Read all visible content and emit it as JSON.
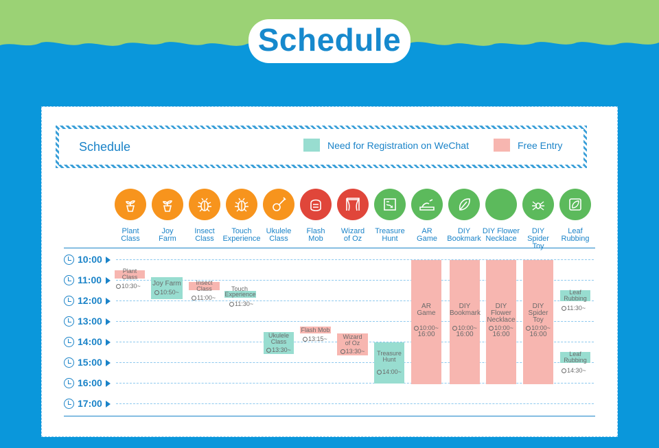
{
  "page": {
    "title": "Schedule"
  },
  "legend": {
    "title": "Schedule",
    "registration_label": "Need for Registration on WeChat",
    "free_label": "Free Entry",
    "registration_color": "#98ddd0",
    "free_color": "#f7b6b0"
  },
  "colors": {
    "orange": "#f7941d",
    "red": "#e0463a",
    "green": "#5cba5c",
    "blue": "#1a83c8",
    "sky": "#0a97db",
    "grass": "#9bd275"
  },
  "activities": [
    {
      "line1": "Plant",
      "line2": "Class",
      "line3": "",
      "icon": "potted-plant-icon",
      "color": "orange"
    },
    {
      "line1": "Joy",
      "line2": "Farm",
      "line3": "",
      "icon": "potted-plant-icon",
      "color": "orange"
    },
    {
      "line1": "Insect",
      "line2": "Class",
      "line3": "",
      "icon": "beetle-icon",
      "color": "orange"
    },
    {
      "line1": "Touch",
      "line2": "Experience",
      "line3": "",
      "icon": "beetle-icon",
      "color": "orange"
    },
    {
      "line1": "Ukulele",
      "line2": "Class",
      "line3": "",
      "icon": "ukulele-icon",
      "color": "orange"
    },
    {
      "line1": "Flash",
      "line2": "Mob",
      "line3": "",
      "icon": "masked-face-icon",
      "color": "red"
    },
    {
      "line1": "Wizard",
      "line2": "of Oz",
      "line3": "",
      "icon": "stage-curtain-icon",
      "color": "red"
    },
    {
      "line1": "Treasure",
      "line2": "Hunt",
      "line3": "",
      "icon": "treasure-map-icon",
      "color": "green"
    },
    {
      "line1": "AR",
      "line2": "Game",
      "line3": "",
      "icon": "sandbox-icon",
      "color": "green"
    },
    {
      "line1": "DIY",
      "line2": "Bookmark",
      "line3": "",
      "icon": "leaf-icon",
      "color": "green"
    },
    {
      "line1": "DIY Flower",
      "line2": "Necklace",
      "line3": "",
      "icon": "flower-necklace-icon",
      "color": "green"
    },
    {
      "line1": "DIY",
      "line2": "Spider",
      "line3": "Toy",
      "icon": "spider-icon",
      "color": "green"
    },
    {
      "line1": "Leaf",
      "line2": "Rubbing",
      "line3": "",
      "icon": "leaf-rubbing-icon",
      "color": "green"
    }
  ],
  "times": [
    "10:00",
    "11:00",
    "12:00",
    "13:00",
    "14:00",
    "15:00",
    "16:00",
    "17:00"
  ],
  "sessions": {
    "plant": {
      "title": "Plant Class",
      "time": "10:30~"
    },
    "joy": {
      "title": "Joy Farm",
      "time": "10:50~"
    },
    "insect": {
      "title": "Insect Class",
      "time": "11:00~"
    },
    "touch": {
      "line1": "Touch",
      "line2": "Experience",
      "time": "11:30~"
    },
    "ukulele": {
      "line1": "Ukulele",
      "line2": "Class",
      "time": "13:30~"
    },
    "flash": {
      "title": "Flash Mob",
      "time": "13:15~"
    },
    "wizard": {
      "line1": "Wizard",
      "line2": "of Oz",
      "time": "13:30~"
    },
    "treasure": {
      "line1": "Treasure",
      "line2": "Hunt",
      "time": "14:00~"
    },
    "ar": {
      "line1": "AR",
      "line2": "Game",
      "line3": "",
      "time": "10:00~",
      "end": "16:00"
    },
    "bookmark": {
      "line1": "DIY",
      "line2": "Bookmark",
      "line3": "",
      "time": "10:00~",
      "end": "16:00"
    },
    "necklace": {
      "line1": "DIY",
      "line2": "Flower",
      "line3": "Necklace",
      "time": "10:00~",
      "end": "16:00"
    },
    "spider": {
      "line1": "DIY",
      "line2": "Spider",
      "line3": "Toy",
      "time": "10:00~",
      "end": "16:00"
    },
    "leaf1": {
      "line1": "Leaf",
      "line2": "Rubbing",
      "time": "11:30~"
    },
    "leaf2": {
      "line1": "Leaf",
      "line2": "Rubbing",
      "time": "14:30~"
    }
  }
}
